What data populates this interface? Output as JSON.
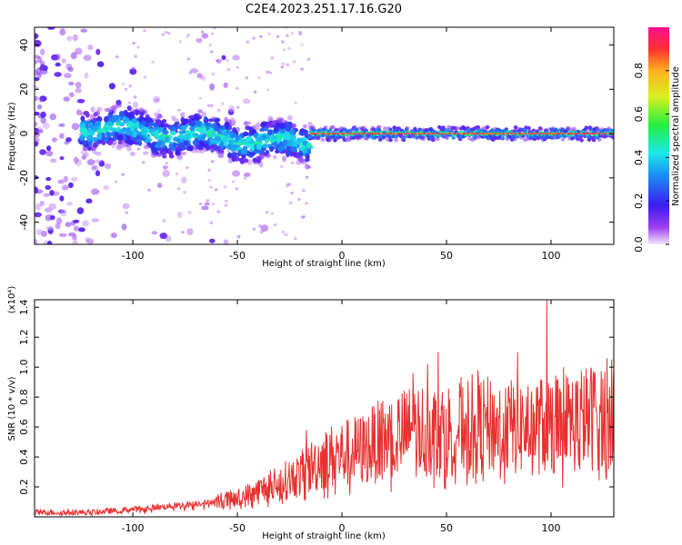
{
  "title": "C2E4.2023.251.17.16.G20",
  "chart_data": [
    {
      "type": "heatmap",
      "xlabel": "Height of straight line (km)",
      "ylabel": "Frequency (Hz)",
      "xlim": [
        -147,
        130
      ],
      "ylim": [
        -50,
        48
      ],
      "xticks": [
        -100,
        -50,
        0,
        50,
        100
      ],
      "yticks": [
        -40,
        -20,
        0,
        20,
        40
      ],
      "colorbar": {
        "label": "Normalized spectral amplitude",
        "range": [
          0,
          1
        ],
        "ticks": [
          "0.0",
          "0.2",
          "0.4",
          "0.6",
          "0.8"
        ],
        "colormap": "rainbow-violet-to-magenta"
      },
      "regions": [
        {
          "x_range": [
            -147,
            -100
          ],
          "description": "scattered low-amplitude noise across all frequencies"
        },
        {
          "x_range": [
            -125,
            -15
          ],
          "freq_center": [
            3,
            -5
          ],
          "amplitude": "0.2-0.5"
        },
        {
          "x_range": [
            -15,
            130
          ],
          "freq_center": 0,
          "amplitude": "0.8-1.0"
        }
      ]
    },
    {
      "type": "line",
      "xlabel": "Height of straight line (km)",
      "ylabel": "SNR (10 * v/v)",
      "yscale_label": "(x10⁴)",
      "xlim": [
        -147,
        130
      ],
      "ylim": [
        0,
        1.45
      ],
      "xticks": [
        -100,
        -50,
        0,
        50,
        100
      ],
      "yticks": [
        "0.2",
        "0.4",
        "0.6",
        "0.8",
        "1.0",
        "1.2",
        "1.4"
      ],
      "series": [
        {
          "color": "#e83030",
          "trend_points": [
            [
              -147,
              0.03
            ],
            [
              -120,
              0.03
            ],
            [
              -100,
              0.05
            ],
            [
              -75,
              0.08
            ],
            [
              -50,
              0.12
            ],
            [
              -35,
              0.2
            ],
            [
              -20,
              0.28
            ],
            [
              -10,
              0.38
            ],
            [
              0,
              0.42
            ],
            [
              10,
              0.45
            ],
            [
              20,
              0.52
            ],
            [
              35,
              0.58
            ],
            [
              50,
              0.58
            ],
            [
              60,
              0.62
            ],
            [
              75,
              0.6
            ],
            [
              90,
              0.6
            ],
            [
              100,
              0.62
            ],
            [
              115,
              0.65
            ],
            [
              130,
              0.7
            ]
          ],
          "peaks": [
            [
              -35,
              0.28
            ],
            [
              -17,
              0.58
            ],
            [
              3,
              0.64
            ],
            [
              34,
              0.96
            ],
            [
              41,
              1.02
            ],
            [
              46,
              1.1
            ],
            [
              65,
              0.98
            ],
            [
              84,
              1.1
            ],
            [
              98,
              1.45
            ],
            [
              106,
              1.0
            ],
            [
              121,
              0.96
            ],
            [
              129,
              1.05
            ]
          ]
        }
      ]
    }
  ]
}
